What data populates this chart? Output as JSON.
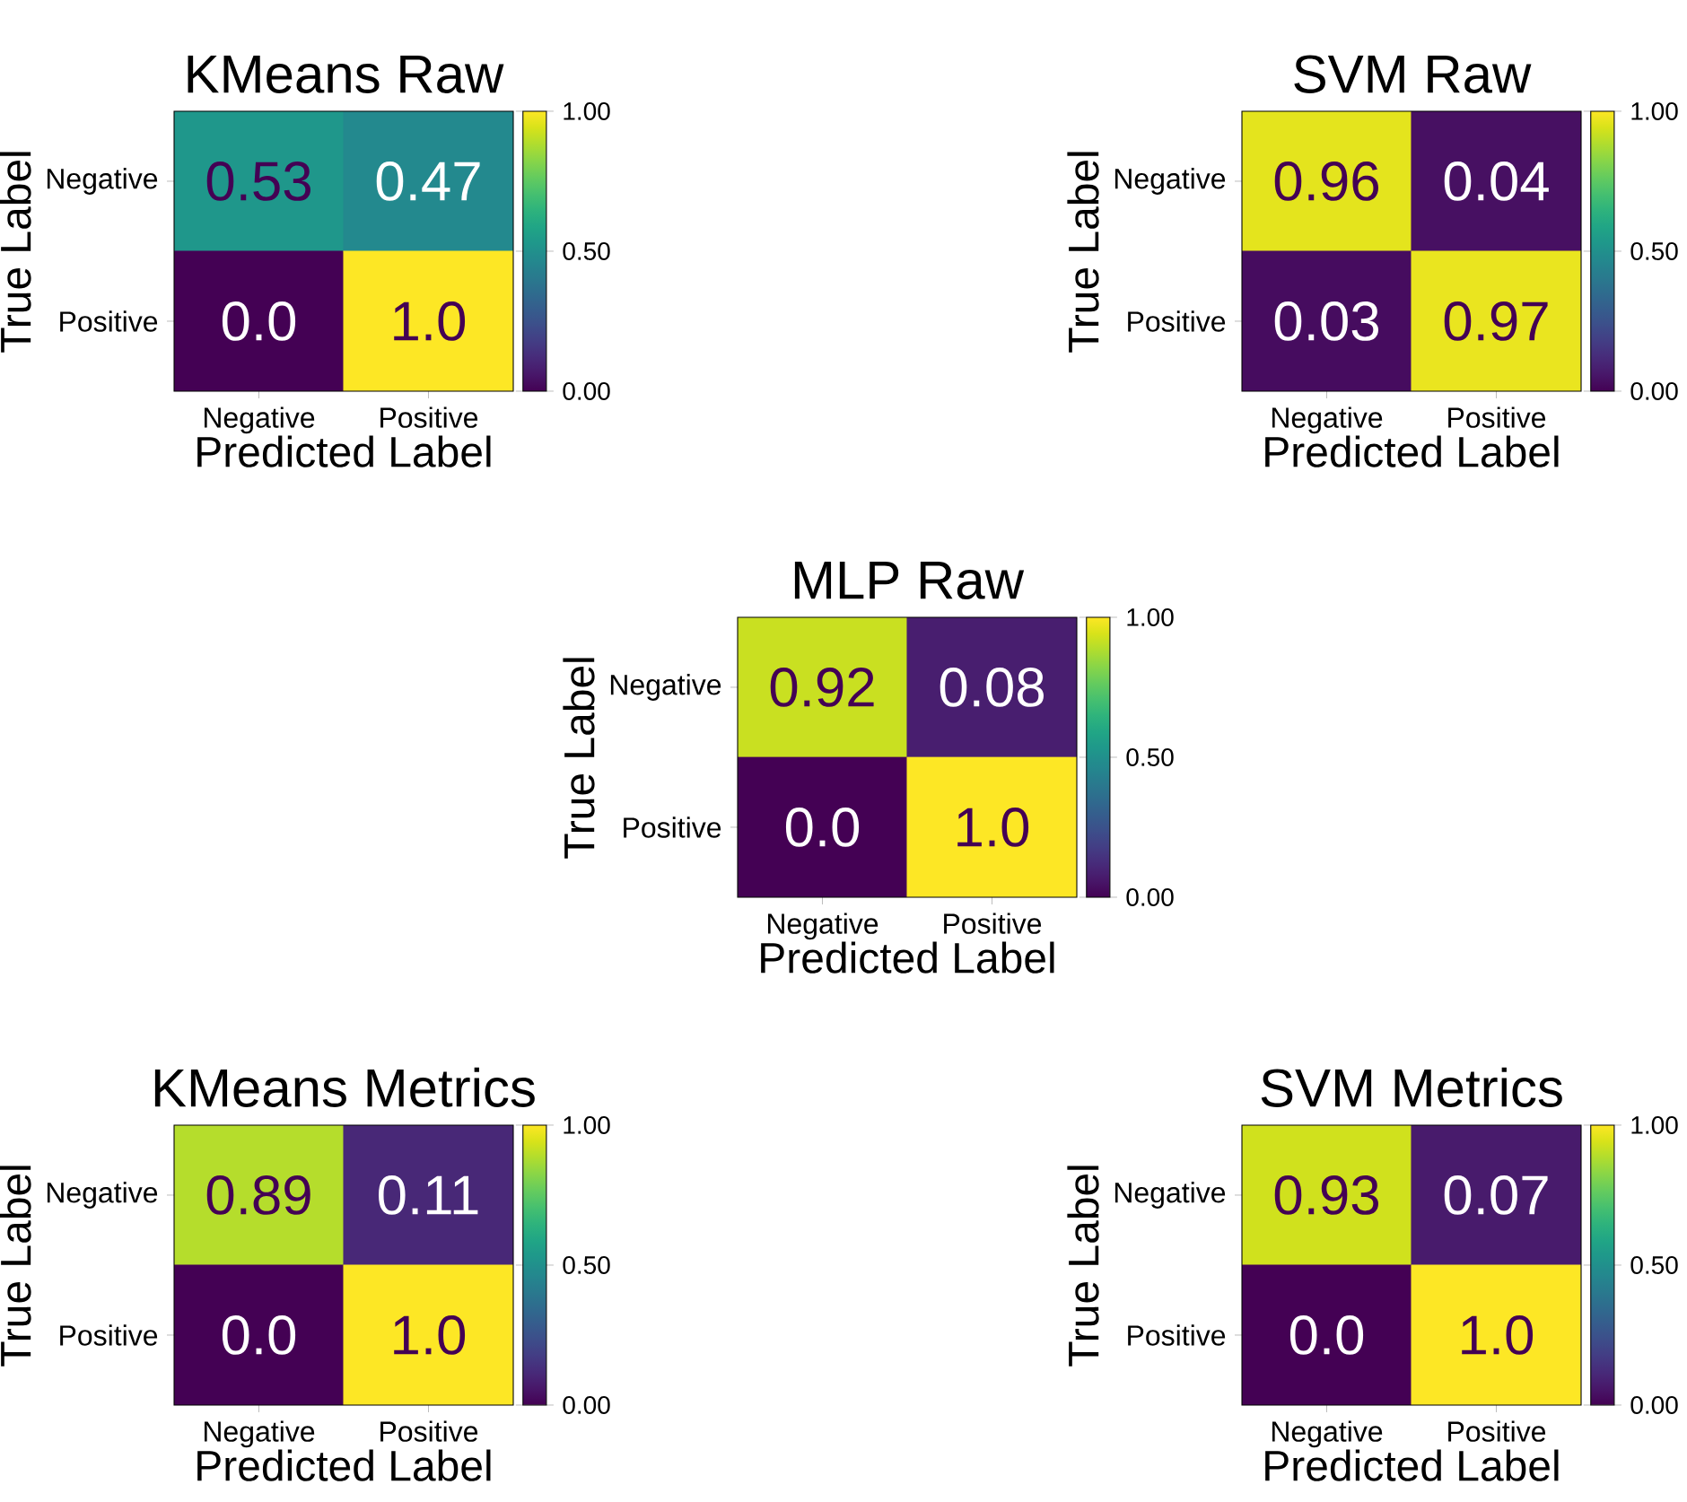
{
  "chart_data": [
    {
      "type": "heatmap",
      "title": "KMeans Raw",
      "xlabel": "Predicted Label",
      "ylabel": "True Label",
      "categories": [
        "Negative",
        "Positive"
      ],
      "y_categories": [
        "Negative",
        "Positive"
      ],
      "cells": [
        [
          0.53,
          0.47
        ],
        [
          0.0,
          1.0
        ]
      ],
      "cell_labels": [
        [
          "0.53",
          "0.47"
        ],
        [
          "0.0",
          "1.0"
        ]
      ],
      "clim": [
        0,
        1
      ],
      "cticks": [
        {
          "value": 0,
          "label": "0.00"
        },
        {
          "value": 0.5,
          "label": "0.50"
        },
        {
          "value": 1,
          "label": "1.00"
        }
      ]
    },
    {
      "type": "heatmap",
      "title": "SVM Raw",
      "xlabel": "Predicted Label",
      "ylabel": "True Label",
      "categories": [
        "Negative",
        "Positive"
      ],
      "y_categories": [
        "Negative",
        "Positive"
      ],
      "cells": [
        [
          0.96,
          0.04
        ],
        [
          0.03,
          0.97
        ]
      ],
      "cell_labels": [
        [
          "0.96",
          "0.04"
        ],
        [
          "0.03",
          "0.97"
        ]
      ],
      "clim": [
        0,
        1
      ],
      "cticks": [
        {
          "value": 0,
          "label": "0.00"
        },
        {
          "value": 0.5,
          "label": "0.50"
        },
        {
          "value": 1,
          "label": "1.00"
        }
      ]
    },
    {
      "type": "heatmap",
      "title": "MLP Raw",
      "xlabel": "Predicted Label",
      "ylabel": "True Label",
      "categories": [
        "Negative",
        "Positive"
      ],
      "y_categories": [
        "Negative",
        "Positive"
      ],
      "cells": [
        [
          0.92,
          0.08
        ],
        [
          0.0,
          1.0
        ]
      ],
      "cell_labels": [
        [
          "0.92",
          "0.08"
        ],
        [
          "0.0",
          "1.0"
        ]
      ],
      "clim": [
        0,
        1
      ],
      "cticks": [
        {
          "value": 0,
          "label": "0.00"
        },
        {
          "value": 0.5,
          "label": "0.50"
        },
        {
          "value": 1,
          "label": "1.00"
        }
      ]
    },
    {
      "type": "heatmap",
      "title": "KMeans Metrics",
      "xlabel": "Predicted Label",
      "ylabel": "True Label",
      "categories": [
        "Negative",
        "Positive"
      ],
      "y_categories": [
        "Negative",
        "Positive"
      ],
      "cells": [
        [
          0.89,
          0.11
        ],
        [
          0.0,
          1.0
        ]
      ],
      "cell_labels": [
        [
          "0.89",
          "0.11"
        ],
        [
          "0.0",
          "1.0"
        ]
      ],
      "clim": [
        0,
        1
      ],
      "cticks": [
        {
          "value": 0,
          "label": "0.00"
        },
        {
          "value": 0.5,
          "label": "0.50"
        },
        {
          "value": 1,
          "label": "1.00"
        }
      ]
    },
    {
      "type": "heatmap",
      "title": "SVM Metrics",
      "xlabel": "Predicted Label",
      "ylabel": "True Label",
      "categories": [
        "Negative",
        "Positive"
      ],
      "y_categories": [
        "Negative",
        "Positive"
      ],
      "cells": [
        [
          0.93,
          0.07
        ],
        [
          0.0,
          1.0
        ]
      ],
      "cell_labels": [
        [
          "0.93",
          "0.07"
        ],
        [
          "0.0",
          "1.0"
        ]
      ],
      "clim": [
        0,
        1
      ],
      "cticks": [
        {
          "value": 0,
          "label": "0.00"
        },
        {
          "value": 0.5,
          "label": "0.50"
        },
        {
          "value": 1,
          "label": "1.00"
        }
      ]
    }
  ]
}
